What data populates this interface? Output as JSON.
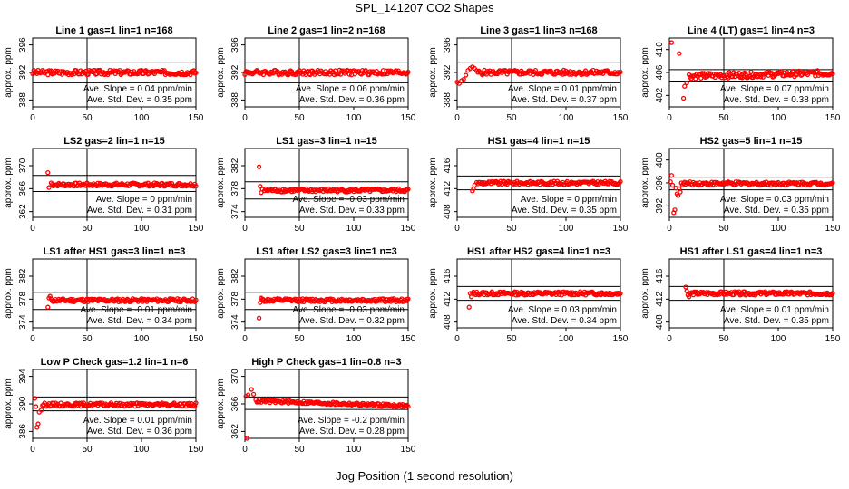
{
  "title": "SPL_141207  CO2 Shapes",
  "xlabel": "Jog Position (1 second resolution)",
  "colors": {
    "points": "#ff0000",
    "axes": "#000000",
    "background": "#ffffff"
  },
  "chart_data": [
    {
      "type": "scatter",
      "title": "Line 1 gas=1 lin=1 n=168",
      "ylabel": "approx. ppm",
      "xlim": [
        0,
        150
      ],
      "ylim": [
        387,
        397
      ],
      "xticks": [
        0,
        50,
        100,
        150
      ],
      "yticks": [
        388,
        392,
        396
      ],
      "hlines": [
        390.5,
        393.5
      ],
      "vline": 50,
      "slope": "Ave. Slope = 0.04  ppm/min",
      "std": "Ave. Std. Dev. = 0.35  ppm",
      "base": 392.0,
      "noise": 0.35,
      "trend": 0.0,
      "startx": 0,
      "spike": [],
      "settle": 0
    },
    {
      "type": "scatter",
      "title": "Line 2 gas=1 lin=2 n=168",
      "ylabel": "approx. ppm",
      "xlim": [
        0,
        150
      ],
      "ylim": [
        387,
        397
      ],
      "xticks": [
        0,
        50,
        100,
        150
      ],
      "yticks": [
        388,
        392,
        396
      ],
      "hlines": [
        390.5,
        393.5
      ],
      "vline": 50,
      "slope": "Ave. Slope = 0.06  ppm/min",
      "std": "Ave. Std. Dev. = 0.36  ppm",
      "base": 392.0,
      "noise": 0.35,
      "trend": 0.0,
      "startx": 0,
      "spike": [],
      "settle": 0
    },
    {
      "type": "scatter",
      "title": "Line 3 gas=1 lin=3 n=168",
      "ylabel": "approx. ppm",
      "xlim": [
        0,
        150
      ],
      "ylim": [
        387,
        397
      ],
      "xticks": [
        0,
        50,
        100,
        150
      ],
      "yticks": [
        388,
        392,
        396
      ],
      "hlines": [
        390.5,
        393.5
      ],
      "vline": 50,
      "slope": "Ave. Slope = 0.01  ppm/min",
      "std": "Ave. Std. Dev. = 0.37  ppm",
      "base": 392.0,
      "noise": 0.35,
      "trend": 0.0,
      "startx": 0,
      "spike": [
        [
          0,
          390.6
        ],
        [
          2,
          390.4
        ],
        [
          4,
          390.8
        ],
        [
          6,
          391.0
        ],
        [
          8,
          391.6
        ],
        [
          10,
          392.3
        ],
        [
          12,
          392.6
        ],
        [
          14,
          392.8
        ],
        [
          16,
          392.6
        ]
      ],
      "settle": 18
    },
    {
      "type": "scatter",
      "title": "Line 4 (LT) gas=1 lin=4 n=3",
      "ylabel": "approx. ppm",
      "xlim": [
        0,
        150
      ],
      "ylim": [
        400,
        412
      ],
      "xticks": [
        0,
        50,
        100,
        150
      ],
      "yticks": [
        402,
        406,
        410
      ],
      "hlines": [
        404.5,
        406.5
      ],
      "vline": 50,
      "slope": "Ave. Slope = 0.07  ppm/min",
      "std": "Ave. Std. Dev. = 0.38  ppm",
      "base": 405.6,
      "noise": 0.5,
      "trend": 0.004,
      "startx": 12,
      "spike": [
        [
          2,
          411.2
        ],
        [
          9,
          409.3
        ],
        [
          13,
          401.5
        ],
        [
          14,
          403.6
        ],
        [
          16,
          404.2
        ]
      ],
      "settle": 18
    },
    {
      "type": "scatter",
      "title": "LS2 gas=2 lin=1 n=15",
      "ylabel": "approx. ppm",
      "xlim": [
        0,
        150
      ],
      "ylim": [
        361,
        373
      ],
      "xticks": [
        0,
        50,
        100,
        150
      ],
      "yticks": [
        362,
        366,
        370
      ],
      "hlines": [
        365.5,
        368.3
      ],
      "vline": 50,
      "slope": "Ave. Slope = 0  ppm/min",
      "std": "Ave. Std. Dev. = 0.31  ppm",
      "base": 366.7,
      "noise": 0.3,
      "trend": 0.0,
      "startx": 14,
      "spike": [
        [
          14,
          368.8
        ],
        [
          15,
          366.2
        ],
        [
          17,
          367.0
        ]
      ],
      "settle": 18
    },
    {
      "type": "scatter",
      "title": "LS1 gas=3 lin=1 n=15",
      "ylabel": "approx. ppm",
      "xlim": [
        0,
        150
      ],
      "ylim": [
        373,
        385
      ],
      "xticks": [
        0,
        50,
        100,
        150
      ],
      "yticks": [
        374,
        378,
        382
      ],
      "hlines": [
        376.2,
        379.2
      ],
      "vline": 50,
      "slope": "Ave. Slope = -0.03  ppm/min",
      "std": "Ave. Std. Dev. = 0.33  ppm",
      "base": 377.7,
      "noise": 0.3,
      "trend": 0.0,
      "startx": 14,
      "spike": [
        [
          13,
          381.8
        ],
        [
          14,
          378.4
        ],
        [
          15,
          377.3
        ],
        [
          16,
          377.9
        ]
      ],
      "settle": 18
    },
    {
      "type": "scatter",
      "title": "HS1 gas=4 lin=1 n=15",
      "ylabel": "approx. ppm",
      "xlim": [
        0,
        150
      ],
      "ylim": [
        407,
        419
      ],
      "xticks": [
        0,
        50,
        100,
        150
      ],
      "yticks": [
        408,
        412,
        416
      ],
      "hlines": [
        411.8,
        414.2
      ],
      "vline": 50,
      "slope": "Ave. Slope = 0  ppm/min",
      "std": "Ave. Std. Dev. = 0.35  ppm",
      "base": 413.0,
      "noise": 0.3,
      "trend": 0.0,
      "startx": 14,
      "spike": [
        [
          14,
          411.6
        ],
        [
          15,
          412.0
        ],
        [
          16,
          412.6
        ],
        [
          18,
          413.1
        ]
      ],
      "settle": 19
    },
    {
      "type": "scatter",
      "title": "HS2 gas=5 lin=1 n=15",
      "ylabel": "approx. ppm",
      "xlim": [
        0,
        150
      ],
      "ylim": [
        390,
        402
      ],
      "xticks": [
        0,
        50,
        100,
        150
      ],
      "yticks": [
        392,
        396,
        400
      ],
      "hlines": [
        394.8,
        397.0
      ],
      "vline": 50,
      "slope": "Ave. Slope = 0.03  ppm/min",
      "std": "Ave. Std. Dev. = 0.35  ppm",
      "base": 395.9,
      "noise": 0.3,
      "trend": 0.0,
      "startx": 2,
      "spike": [
        [
          1,
          396.2
        ],
        [
          2,
          397.3
        ],
        [
          3,
          395.6
        ],
        [
          4,
          390.8
        ],
        [
          5,
          391.3
        ],
        [
          6,
          395.1
        ],
        [
          7,
          394.1
        ],
        [
          8,
          393.8
        ],
        [
          9,
          395.0
        ],
        [
          10,
          394.4
        ],
        [
          11,
          396.0
        ]
      ],
      "settle": 12
    },
    {
      "type": "scatter",
      "title": "LS1 after HS1 gas=3 lin=1 n=3",
      "ylabel": "approx. ppm",
      "xlim": [
        0,
        150
      ],
      "ylim": [
        373,
        385
      ],
      "xticks": [
        0,
        50,
        100,
        150
      ],
      "yticks": [
        374,
        378,
        382
      ],
      "hlines": [
        376.2,
        379.2
      ],
      "vline": 50,
      "slope": "Ave. Slope = -0.01  ppm/min",
      "std": "Ave. Std. Dev. = 0.34  ppm",
      "base": 377.8,
      "noise": 0.3,
      "trend": 0.0,
      "startx": 14,
      "spike": [
        [
          14,
          376.6
        ],
        [
          15,
          378.2
        ],
        [
          16,
          378.5
        ]
      ],
      "settle": 17
    },
    {
      "type": "scatter",
      "title": "LS1 after LS2 gas=3 lin=1 n=3",
      "ylabel": "approx. ppm",
      "xlim": [
        0,
        150
      ],
      "ylim": [
        373,
        385
      ],
      "xticks": [
        0,
        50,
        100,
        150
      ],
      "yticks": [
        374,
        378,
        382
      ],
      "hlines": [
        376.2,
        379.2
      ],
      "vline": 50,
      "slope": "Ave. Slope = -0.03  ppm/min",
      "std": "Ave. Std. Dev. = 0.32  ppm",
      "base": 377.8,
      "noise": 0.3,
      "trend": 0.0,
      "startx": 14,
      "spike": [
        [
          13,
          374.7
        ],
        [
          14,
          377.4
        ],
        [
          15,
          378.2
        ],
        [
          16,
          378.0
        ]
      ],
      "settle": 17
    },
    {
      "type": "scatter",
      "title": "HS1 after HS2 gas=4 lin=1 n=3",
      "ylabel": "approx. ppm",
      "xlim": [
        0,
        150
      ],
      "ylim": [
        407,
        419
      ],
      "xticks": [
        0,
        50,
        100,
        150
      ],
      "yticks": [
        408,
        412,
        416
      ],
      "hlines": [
        411.8,
        414.2
      ],
      "vline": 50,
      "slope": "Ave. Slope = 0.03  ppm/min",
      "std": "Ave. Std. Dev. = 0.34  ppm",
      "base": 413.0,
      "noise": 0.3,
      "trend": 0.0,
      "startx": 12,
      "spike": [
        [
          11,
          410.6
        ],
        [
          12,
          413.0
        ],
        [
          13,
          412.4
        ]
      ],
      "settle": 14
    },
    {
      "type": "scatter",
      "title": "HS1 after LS1 gas=4 lin=1 n=3",
      "ylabel": "approx. ppm",
      "xlim": [
        0,
        150
      ],
      "ylim": [
        407,
        419
      ],
      "xticks": [
        0,
        50,
        100,
        150
      ],
      "yticks": [
        408,
        412,
        416
      ],
      "hlines": [
        411.8,
        414.2
      ],
      "vline": 50,
      "slope": "Ave. Slope = 0.01  ppm/min",
      "std": "Ave. Std. Dev. = 0.35  ppm",
      "base": 413.0,
      "noise": 0.3,
      "trend": 0.0,
      "startx": 15,
      "spike": [
        [
          15,
          414.1
        ],
        [
          16,
          413.4
        ],
        [
          17,
          412.7
        ],
        [
          18,
          412.4
        ]
      ],
      "settle": 19
    },
    {
      "type": "scatter",
      "title": "Low P Check gas=1.2 lin=1 n=6",
      "ylabel": "approx. ppm",
      "xlim": [
        0,
        150
      ],
      "ylim": [
        385,
        395
      ],
      "xticks": [
        0,
        50,
        100,
        150
      ],
      "yticks": [
        386,
        390,
        394
      ],
      "hlines": [
        389.0,
        391.0
      ],
      "vline": 50,
      "slope": "Ave. Slope = 0.01  ppm/min",
      "std": "Ave. Std. Dev. = 0.36  ppm",
      "base": 389.9,
      "noise": 0.25,
      "trend": 0.0,
      "startx": 8,
      "spike": [
        [
          2,
          390.8
        ],
        [
          3,
          389.6
        ],
        [
          4,
          386.6
        ],
        [
          5,
          387.1
        ],
        [
          6,
          388.8
        ],
        [
          8,
          389.1
        ]
      ],
      "settle": 9
    },
    {
      "type": "scatter",
      "title": "High P Check gas=1 lin=0.8 n=3",
      "ylabel": "approx. ppm",
      "xlim": [
        0,
        150
      ],
      "ylim": [
        361,
        371
      ],
      "xticks": [
        0,
        50,
        100,
        150
      ],
      "yticks": [
        362,
        366,
        370
      ],
      "hlines": [
        365.2,
        367.0
      ],
      "vline": 50,
      "slope": "Ave. Slope = -0.2  ppm/min",
      "std": "Ave. Std. Dev. = 0.28  ppm",
      "base": 366.1,
      "noise": 0.2,
      "trend": -0.005,
      "startx": 10,
      "spike": [
        [
          1,
          367.1
        ],
        [
          3,
          367.3
        ],
        [
          6,
          368.1
        ],
        [
          8,
          367.4
        ],
        [
          10,
          366.6
        ],
        [
          2,
          361.0
        ]
      ],
      "settle": 11
    }
  ]
}
